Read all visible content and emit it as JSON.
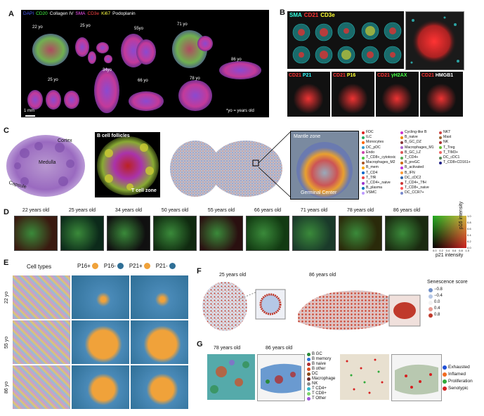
{
  "panel_labels": {
    "A": "A",
    "B": "B",
    "C": "C",
    "D": "D",
    "E": "E",
    "F": "F",
    "G": "G"
  },
  "panel_a": {
    "stain_legend": [
      {
        "text": "DAPI",
        "color": "#4a5cff"
      },
      {
        "text": "CD20",
        "color": "#44ff44"
      },
      {
        "text": "Collagen IV",
        "color": "#ffffff"
      },
      {
        "text": "SMA",
        "color": "#ff55ff"
      },
      {
        "text": "CD3e",
        "color": "#ff4444"
      },
      {
        "text": "Ki67",
        "color": "#ffff44"
      },
      {
        "text": "Podoplanin",
        "color": "#ffffff"
      }
    ],
    "ages_top": [
      "22 yo",
      "25 yo",
      "55yo",
      "71 yo",
      "86 yo"
    ],
    "ages_bottom": [
      "25 yo",
      "34yo",
      "66 yo",
      "78 yo"
    ],
    "scale": "1 mm",
    "note": "*yo = years old"
  },
  "panel_b": {
    "top_legend": [
      {
        "text": "SMA",
        "color": "#33ffdd"
      },
      {
        "text": "CD21",
        "color": "#ff3333"
      },
      {
        "text": "CD3e",
        "color": "#ffff33"
      }
    ],
    "bottom_tiles": [
      {
        "a": "CD21",
        "b": "P21",
        "bcolor": "#33ffff"
      },
      {
        "a": "CD21",
        "b": "P16",
        "bcolor": "#ffff33"
      },
      {
        "a": "CD21",
        "b": "γH2AX",
        "bcolor": "#44ff44"
      },
      {
        "a": "CD21",
        "b": "HMGB1",
        "bcolor": "#ffffff"
      }
    ]
  },
  "panel_c": {
    "labels": {
      "cortex": "Cortex",
      "medulla": "Medulla",
      "capsule": "Capsule",
      "b_follicles": "B cell follicles",
      "t_zone": "T cell zone",
      "mantle": "Mantle zone",
      "germinal": "Germinal Center"
    },
    "legend_col1": [
      {
        "name": "FDC",
        "color": "#d22"
      },
      {
        "name": "ILC",
        "color": "#2a6"
      },
      {
        "name": "Monocytes",
        "color": "#f60"
      },
      {
        "name": "DC_pDC",
        "color": "#39c"
      },
      {
        "name": "Endo",
        "color": "#c4a"
      },
      {
        "name": "T_CD8+_cytotoxic",
        "color": "#4c4"
      },
      {
        "name": "Macrophages_M2",
        "color": "#a52"
      },
      {
        "name": "B_mem",
        "color": "#fa0"
      },
      {
        "name": "T_CD4",
        "color": "#06c"
      },
      {
        "name": "T_TfR",
        "color": "#e44"
      },
      {
        "name": "T_CD4+_naive",
        "color": "#93c"
      },
      {
        "name": "B_plasma",
        "color": "#07b"
      },
      {
        "name": "VSMC",
        "color": "#b9f"
      }
    ],
    "legend_col2": [
      {
        "name": "Cycling-like B",
        "color": "#c3c"
      },
      {
        "name": "B_naive",
        "color": "#e80"
      },
      {
        "name": "B_GC_DZ",
        "color": "#833"
      },
      {
        "name": "Macrophages_M1",
        "color": "#a6c"
      },
      {
        "name": "B_GC_LZ",
        "color": "#d55"
      },
      {
        "name": "T_CD4+",
        "color": "#5a5"
      },
      {
        "name": "B_preGC",
        "color": "#c60"
      },
      {
        "name": "B_activated",
        "color": "#b3d"
      },
      {
        "name": "B_IFN",
        "color": "#f93"
      },
      {
        "name": "DC_cDC2",
        "color": "#36a"
      },
      {
        "name": "T_CD4+_TfH",
        "color": "#c33"
      },
      {
        "name": "T_CD8+_naive",
        "color": "#f55"
      },
      {
        "name": "DC_CCR7+",
        "color": "#78c"
      }
    ],
    "legend_col3": [
      {
        "name": "NKT",
        "color": "#c44"
      },
      {
        "name": "Mast",
        "color": "#963"
      },
      {
        "name": "NK",
        "color": "#a33"
      },
      {
        "name": "T_Treg",
        "color": "#6b3"
      },
      {
        "name": "T_TIM3+",
        "color": "#e66"
      },
      {
        "name": "DC_cDC1",
        "color": "#585"
      },
      {
        "name": "T_CD8+CD161+",
        "color": "#228"
      }
    ]
  },
  "panel_d": {
    "ages": [
      "22 years old",
      "25 years old",
      "34 years old",
      "50 years old",
      "55 years old",
      "66 years old",
      "71 years old",
      "78 years old",
      "86 years old"
    ],
    "colormap": {
      "xlabel": "p21 intensity",
      "ylabel": "p16 intensity",
      "ticks": [
        "0.0",
        "0.2",
        "0.4",
        "0.6",
        "0.8",
        "1.0"
      ]
    }
  },
  "panel_e": {
    "header_cell_types": "Cell types",
    "legend": [
      {
        "text": "P16+",
        "color": "#f0a23a"
      },
      {
        "text": "P16-",
        "color": "#2f6f96"
      },
      {
        "text": "P21+",
        "color": "#f0a23a"
      },
      {
        "text": "P21-",
        "color": "#2f6f96"
      }
    ],
    "rows": [
      "22 yo",
      "55 yo",
      "86 yo"
    ]
  },
  "panel_f": {
    "ages": [
      "25 years old",
      "86 years old"
    ],
    "legend_title": "Senescence score",
    "legend": [
      {
        "text": "−0.8",
        "color": "#6f8fc8"
      },
      {
        "text": "−0.4",
        "color": "#b5c7e6"
      },
      {
        "text": "0.0",
        "color": "#f2f2f2"
      },
      {
        "text": "0.4",
        "color": "#e79a8f"
      },
      {
        "text": "0.8",
        "color": "#c0392b"
      }
    ]
  },
  "panel_g": {
    "ages": [
      "78 years old",
      "86 years old"
    ],
    "legend1": [
      {
        "text": "B GC",
        "color": "#2a8a3a"
      },
      {
        "text": "B memory",
        "color": "#2f6fd6"
      },
      {
        "text": "B naive",
        "color": "#b03030"
      },
      {
        "text": "B other",
        "color": "#d94a1e"
      },
      {
        "text": "DC",
        "color": "#8a4a1a"
      },
      {
        "text": "Macrophage",
        "color": "#6a2a2a"
      },
      {
        "text": "NK",
        "color": "#8a8a8a"
      },
      {
        "text": "T CD4+",
        "color": "#2fb5c8"
      },
      {
        "text": "T CD8+",
        "color": "#7ed36b"
      },
      {
        "text": "T Other",
        "color": "#9a55d8"
      }
    ],
    "legend2": [
      {
        "text": "Exhausted",
        "color": "#1f4fd6"
      },
      {
        "text": "Inflamed",
        "color": "#f26a1f"
      },
      {
        "text": "Proliferation",
        "color": "#2faa3a"
      },
      {
        "text": "Senotypic",
        "color": "#d62020"
      }
    ]
  }
}
